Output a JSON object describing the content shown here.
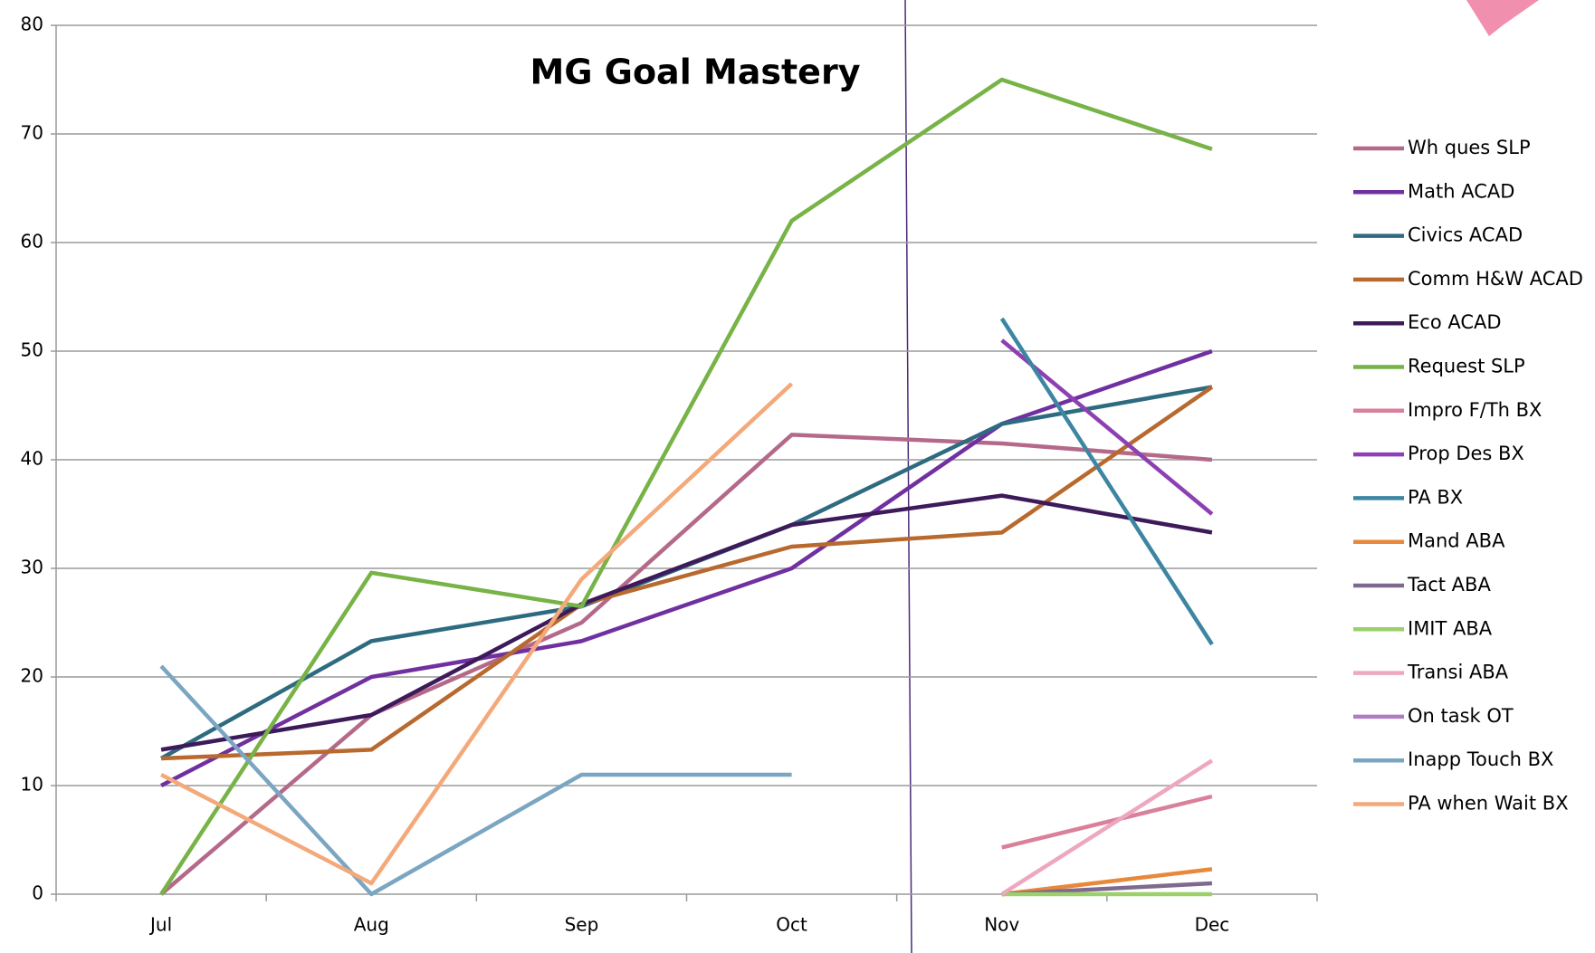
{
  "chart_data": {
    "type": "line",
    "title": "MG Goal Mastery",
    "categories": [
      "Jul",
      "Aug",
      "Sep",
      "Oct",
      "Nov",
      "Dec"
    ],
    "ylim": [
      0,
      80
    ],
    "yticks": [
      0,
      10,
      20,
      30,
      40,
      50,
      60,
      70,
      80
    ],
    "grid": true,
    "legend": "right",
    "series": [
      {
        "name": "Wh ques SLP",
        "color": "#b5698a",
        "values": [
          0,
          16.5,
          25,
          42.3,
          41.5,
          40
        ]
      },
      {
        "name": "Math ACAD",
        "color": "#7030a0",
        "values": [
          10,
          20,
          23.3,
          30,
          43.3,
          50
        ]
      },
      {
        "name": "Civics ACAD",
        "color": "#2e6b80",
        "values": [
          12.5,
          23.3,
          26.5,
          34,
          43.3,
          46.7
        ]
      },
      {
        "name": "Comm H&W ACAD",
        "color": "#b8692e",
        "values": [
          12.5,
          13.3,
          26.7,
          32,
          33.3,
          46.7
        ]
      },
      {
        "name": "Eco ACAD",
        "color": "#3d1a5a",
        "values": [
          13.3,
          16.5,
          26.7,
          34,
          36.7,
          33.3
        ]
      },
      {
        "name": "Request SLP",
        "color": "#77b347",
        "values": [
          0,
          29.6,
          26.5,
          62,
          75,
          68.6
        ]
      },
      {
        "name": "Impro F/Th BX",
        "color": "#d9809a",
        "values": [
          null,
          null,
          null,
          null,
          4.3,
          9
        ]
      },
      {
        "name": "Prop Des BX",
        "color": "#8e3fb3",
        "values": [
          null,
          null,
          null,
          null,
          51,
          35
        ]
      },
      {
        "name": "PA BX",
        "color": "#3d86a3",
        "values": [
          null,
          null,
          null,
          null,
          53,
          23
        ]
      },
      {
        "name": "Mand ABA",
        "color": "#e8883a",
        "values": [
          null,
          null,
          null,
          null,
          0,
          2.3
        ]
      },
      {
        "name": "Tact ABA",
        "color": "#7f6a8f",
        "values": [
          null,
          null,
          null,
          null,
          0,
          1
        ]
      },
      {
        "name": "IMIT ABA",
        "color": "#9bd06a",
        "values": [
          null,
          null,
          null,
          null,
          0,
          0
        ]
      },
      {
        "name": "Transi ABA",
        "color": "#eea7c0",
        "values": [
          null,
          null,
          null,
          null,
          0,
          12.3
        ]
      },
      {
        "name": "On task OT",
        "color": "#b07cc6",
        "values": [
          null,
          null,
          null,
          null,
          null,
          null
        ]
      },
      {
        "name": "Inapp Touch BX",
        "color": "#7aa6c2",
        "values": [
          21,
          0,
          11,
          11,
          null,
          null
        ]
      },
      {
        "name": "PA when Wait BX",
        "color": "#f4a97a",
        "values": [
          11,
          1,
          29,
          47,
          null,
          null
        ]
      }
    ]
  }
}
